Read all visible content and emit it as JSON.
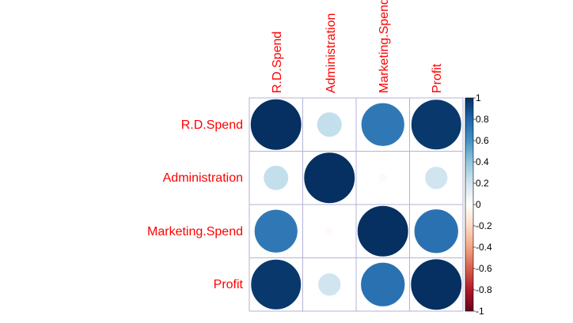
{
  "chart_data": {
    "type": "heatmap",
    "variables": [
      "R.D.Spend",
      "Administration",
      "Marketing.Spend",
      "Profit"
    ],
    "matrix": [
      [
        1.0,
        0.24,
        0.72,
        0.97
      ],
      [
        0.24,
        1.0,
        -0.03,
        0.2
      ],
      [
        0.72,
        -0.03,
        1.0,
        0.75
      ],
      [
        0.97,
        0.2,
        0.75,
        1.0
      ]
    ],
    "legend": {
      "ticks": [
        "1",
        "0.8",
        "0.6",
        "0.4",
        "0.2",
        "0",
        "-0.2",
        "-0.4",
        "-0.6",
        "-0.8",
        "-1"
      ],
      "range": [
        -1,
        1
      ],
      "placement": "right"
    },
    "colors": {
      "label": "#ff0000",
      "palette": [
        "#67001f",
        "#b2182b",
        "#d6604d",
        "#f4a582",
        "#fddbc7",
        "#ffffff",
        "#d1e5f0",
        "#92c5de",
        "#4393c3",
        "#2166ac",
        "#053061"
      ],
      "grid": "#b3b3d9"
    }
  }
}
